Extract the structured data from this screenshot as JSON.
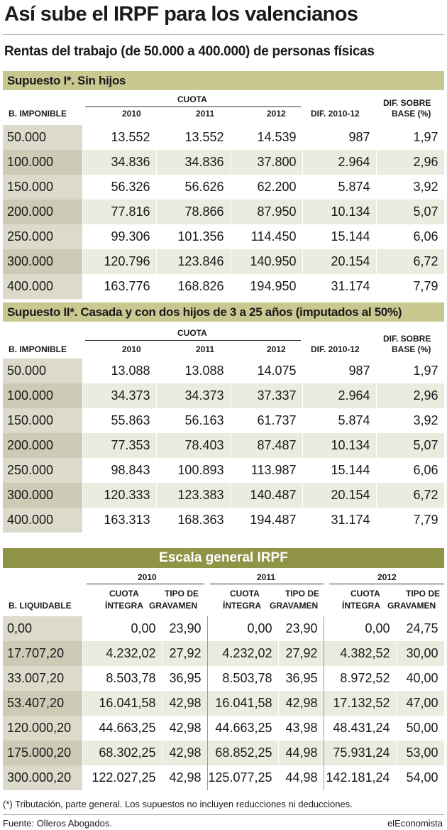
{
  "title": "Así sube el IRPF para los valencianos",
  "subtitle": "Rentas del trabajo (de 50.000 a 400.000) de personas físicas",
  "section1": {
    "heading": "Supuesto I*. Sin hijos",
    "header": {
      "base": "B. IMPONIBLE",
      "cuota": "CUOTA",
      "y2010": "2010",
      "y2011": "2011",
      "y2012": "2012",
      "dif": "DIF. 2010-12",
      "dif_base_1": "DIF. SOBRE",
      "dif_base_2": "BASE (%)"
    },
    "rows": [
      [
        "50.000",
        "13.552",
        "13.552",
        "14.539",
        "987",
        "1,97"
      ],
      [
        "100.000",
        "34.836",
        "34.836",
        "37.800",
        "2.964",
        "2,96"
      ],
      [
        "150.000",
        "56.326",
        "56.626",
        "62.200",
        "5.874",
        "3,92"
      ],
      [
        "200.000",
        "77.816",
        "78.866",
        "87.950",
        "10.134",
        "5,07"
      ],
      [
        "250.000",
        "99.306",
        "101.356",
        "114.450",
        "15.144",
        "6,06"
      ],
      [
        "300.000",
        "120.796",
        "123.846",
        "140.950",
        "20.154",
        "6,72"
      ],
      [
        "400.000",
        "163.776",
        "168.826",
        "194.950",
        "31.174",
        "7,79"
      ]
    ]
  },
  "section2": {
    "heading": "Supuesto II*. Casada y con dos hijos  de 3 a 25 años (imputados al 50%)",
    "header": {
      "base": "B. IMPONIBLE",
      "cuota": "CUOTA",
      "y2010": "2010",
      "y2011": "2011",
      "y2012": "2012",
      "dif": "DIF. 2010-12",
      "dif_base_1": "DIF. SOBRE",
      "dif_base_2": "BASE (%)"
    },
    "rows": [
      [
        "50.000",
        "13.088",
        "13.088",
        "14.075",
        "987",
        "1,97"
      ],
      [
        "100.000",
        "34.373",
        "34.373",
        "37.337",
        "2.964",
        "2,96"
      ],
      [
        "150.000",
        "55.863",
        "56.163",
        "61.737",
        "5.874",
        "3,92"
      ],
      [
        "200.000",
        "77.353",
        "78.403",
        "87.487",
        "10.134",
        "5,07"
      ],
      [
        "250.000",
        "98.843",
        "100.893",
        "113.987",
        "15.144",
        "6,06"
      ],
      [
        "300.000",
        "120.333",
        "123.383",
        "140.487",
        "20.154",
        "6,72"
      ],
      [
        "400.000",
        "163.313",
        "168.363",
        "194.487",
        "31.174",
        "7,79"
      ]
    ]
  },
  "section3": {
    "heading": "Escala general IRPF",
    "header": {
      "base": "B. LIQUIDABLE",
      "y2010": "2010",
      "y2011": "2011",
      "y2012": "2012",
      "cuota_1": "CUOTA",
      "cuota_2": "ÍNTEGRA",
      "tipo_1": "TIPO DE",
      "tipo_2": "GRAVAMEN"
    },
    "rows": [
      [
        "0,00",
        "0,00",
        "23,90",
        "0,00",
        "23,90",
        "0,00",
        "24,75"
      ],
      [
        "17.707,20",
        "4.232,02",
        "27,92",
        "4.232,02",
        "27,92",
        "4.382,52",
        "30,00"
      ],
      [
        "33.007,20",
        "8.503,78",
        "36,95",
        "8.503,78",
        "36,95",
        "8.972,52",
        "40,00"
      ],
      [
        "53.407,20",
        "16.041,58",
        "42,98",
        "16.041,58",
        "42,98",
        "17.132,52",
        "47,00"
      ],
      [
        "120.000,20",
        "44.663,25",
        "42,98",
        "44.663,25",
        "43,98",
        "48.431,24",
        "50,00"
      ],
      [
        "175.000,20",
        "68.302,25",
        "42,98",
        "68.852,25",
        "44,98",
        "75.931,24",
        "53,00"
      ],
      [
        "300.000,20",
        "122.027,25",
        "42,98",
        "125.077,25",
        "44,98",
        "142.181,24",
        "54,00"
      ]
    ]
  },
  "footnote": "(*) Tributación, parte general. Los supuestos no incluyen reducciones ni deducciones.",
  "source": "Fuente: Olleros Abogados.",
  "brand": "elEconomista"
}
